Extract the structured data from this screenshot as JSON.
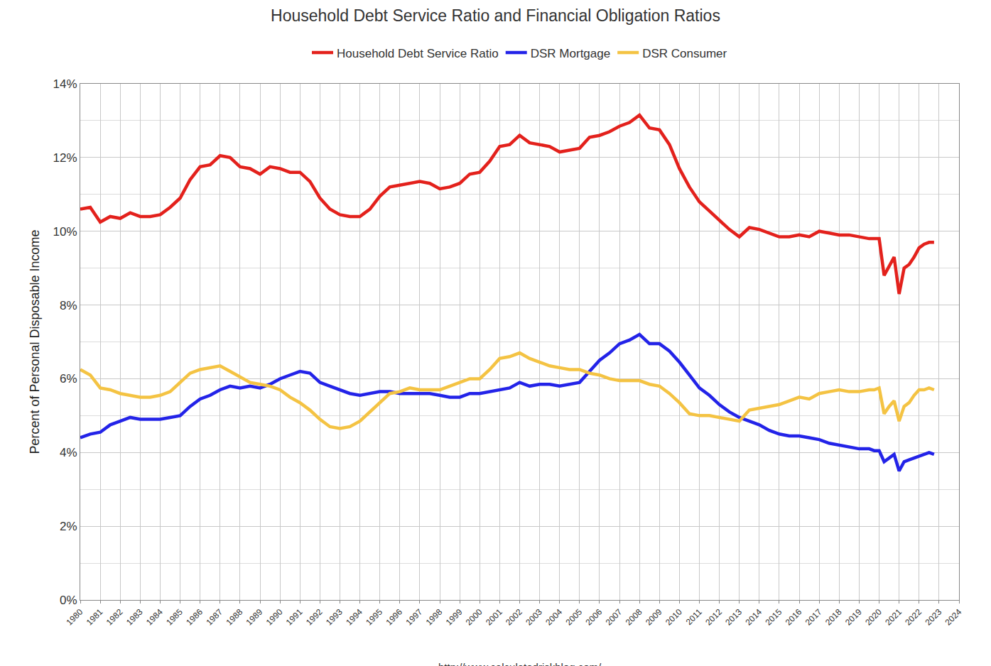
{
  "chart_data": {
    "type": "line",
    "title": "Household Debt Service Ratio and Financial Obligation Ratios",
    "y_label": "Percent of Personal Disposable Income",
    "annotations": [
      "http://www.calculatedriskblog.com/"
    ],
    "legend": "top",
    "grid": true,
    "xlim": [
      1980,
      2024
    ],
    "xticks": [
      1980,
      1981,
      1982,
      1983,
      1984,
      1985,
      1986,
      1987,
      1988,
      1989,
      1990,
      1991,
      1992,
      1993,
      1994,
      1995,
      1996,
      1997,
      1998,
      1999,
      2000,
      2001,
      2002,
      2003,
      2004,
      2005,
      2006,
      2007,
      2008,
      2009,
      2010,
      2011,
      2012,
      2013,
      2014,
      2015,
      2016,
      2017,
      2018,
      2019,
      2020,
      2021,
      2022,
      2023,
      2024
    ],
    "ylim": [
      0,
      14
    ],
    "yticks": [
      {
        "value": 0,
        "label": "0%"
      },
      {
        "value": 2,
        "label": "2%"
      },
      {
        "value": 4,
        "label": "4%"
      },
      {
        "value": 6,
        "label": "6%"
      },
      {
        "value": 8,
        "label": "8%"
      },
      {
        "value": 10,
        "label": "10%"
      },
      {
        "value": 12,
        "label": "12%"
      },
      {
        "value": 14,
        "label": "14%"
      }
    ],
    "x": [
      1980,
      1980.5,
      1981,
      1981.5,
      1982,
      1982.5,
      1983,
      1983.5,
      1984,
      1984.5,
      1985,
      1985.5,
      1986,
      1986.5,
      1987,
      1987.5,
      1988,
      1988.5,
      1989,
      1989.5,
      1990,
      1990.5,
      1991,
      1991.5,
      1992,
      1992.5,
      1993,
      1993.5,
      1994,
      1994.5,
      1995,
      1995.5,
      1996,
      1996.5,
      1997,
      1997.5,
      1998,
      1998.5,
      1999,
      1999.5,
      2000,
      2000.5,
      2001,
      2001.5,
      2002,
      2002.5,
      2003,
      2003.5,
      2004,
      2004.5,
      2005,
      2005.5,
      2006,
      2006.5,
      2007,
      2007.5,
      2008,
      2008.5,
      2009,
      2009.5,
      2010,
      2010.5,
      2011,
      2011.5,
      2012,
      2012.5,
      2013,
      2013.5,
      2014,
      2014.5,
      2015,
      2015.5,
      2016,
      2016.5,
      2017,
      2017.5,
      2018,
      2018.5,
      2019,
      2019.5,
      2019.75,
      2020,
      2020.25,
      2020.5,
      2020.75,
      2021,
      2021.25,
      2021.5,
      2021.75,
      2022,
      2022.25,
      2022.5,
      2022.75
    ],
    "series": [
      {
        "name": "Household Debt Service Ratio",
        "color": "#e3211c",
        "values": [
          10.6,
          10.65,
          10.25,
          10.4,
          10.35,
          10.5,
          10.4,
          10.4,
          10.45,
          10.65,
          10.9,
          11.4,
          11.75,
          11.8,
          12.05,
          12.0,
          11.75,
          11.7,
          11.55,
          11.75,
          11.7,
          11.6,
          11.6,
          11.35,
          10.9,
          10.6,
          10.45,
          10.4,
          10.4,
          10.6,
          10.95,
          11.2,
          11.25,
          11.3,
          11.35,
          11.3,
          11.15,
          11.2,
          11.3,
          11.55,
          11.6,
          11.9,
          12.3,
          12.35,
          12.6,
          12.4,
          12.35,
          12.3,
          12.15,
          12.2,
          12.25,
          12.55,
          12.6,
          12.7,
          12.85,
          12.95,
          13.15,
          12.8,
          12.75,
          12.35,
          11.7,
          11.2,
          10.8,
          10.55,
          10.3,
          10.05,
          9.85,
          10.1,
          10.05,
          9.95,
          9.85,
          9.85,
          9.9,
          9.85,
          10.0,
          9.95,
          9.9,
          9.9,
          9.85,
          9.8,
          9.8,
          9.8,
          8.8,
          9.05,
          9.3,
          8.3,
          9.0,
          9.1,
          9.3,
          9.55,
          9.65,
          9.7,
          9.7
        ]
      },
      {
        "name": "DSR Mortgage",
        "color": "#2323e8",
        "values": [
          4.4,
          4.5,
          4.55,
          4.75,
          4.85,
          4.95,
          4.9,
          4.9,
          4.9,
          4.95,
          5.0,
          5.25,
          5.45,
          5.55,
          5.7,
          5.8,
          5.75,
          5.8,
          5.75,
          5.85,
          6.0,
          6.1,
          6.2,
          6.15,
          5.9,
          5.8,
          5.7,
          5.6,
          5.55,
          5.6,
          5.65,
          5.65,
          5.6,
          5.6,
          5.6,
          5.6,
          5.55,
          5.5,
          5.5,
          5.6,
          5.6,
          5.65,
          5.7,
          5.75,
          5.9,
          5.8,
          5.85,
          5.85,
          5.8,
          5.85,
          5.9,
          6.2,
          6.5,
          6.7,
          6.95,
          7.05,
          7.2,
          6.95,
          6.95,
          6.75,
          6.45,
          6.1,
          5.75,
          5.55,
          5.3,
          5.1,
          4.95,
          4.85,
          4.75,
          4.6,
          4.5,
          4.45,
          4.45,
          4.4,
          4.35,
          4.25,
          4.2,
          4.15,
          4.1,
          4.1,
          4.05,
          4.05,
          3.75,
          3.85,
          3.95,
          3.5,
          3.75,
          3.8,
          3.85,
          3.9,
          3.95,
          4.0,
          3.95
        ]
      },
      {
        "name": "DSR Consumer",
        "color": "#f4c343",
        "values": [
          6.25,
          6.1,
          5.75,
          5.7,
          5.6,
          5.55,
          5.5,
          5.5,
          5.55,
          5.65,
          5.9,
          6.15,
          6.25,
          6.3,
          6.35,
          6.2,
          6.05,
          5.9,
          5.85,
          5.8,
          5.7,
          5.5,
          5.35,
          5.15,
          4.9,
          4.7,
          4.65,
          4.7,
          4.85,
          5.1,
          5.35,
          5.6,
          5.65,
          5.75,
          5.7,
          5.7,
          5.7,
          5.8,
          5.9,
          6.0,
          6.0,
          6.25,
          6.55,
          6.6,
          6.7,
          6.55,
          6.45,
          6.35,
          6.3,
          6.25,
          6.25,
          6.15,
          6.1,
          6.0,
          5.95,
          5.95,
          5.95,
          5.85,
          5.8,
          5.6,
          5.35,
          5.05,
          5.0,
          5.0,
          4.95,
          4.9,
          4.85,
          5.15,
          5.2,
          5.25,
          5.3,
          5.4,
          5.5,
          5.45,
          5.6,
          5.65,
          5.7,
          5.65,
          5.65,
          5.7,
          5.7,
          5.75,
          5.05,
          5.25,
          5.4,
          4.85,
          5.25,
          5.35,
          5.55,
          5.7,
          5.7,
          5.75,
          5.7
        ]
      }
    ]
  }
}
